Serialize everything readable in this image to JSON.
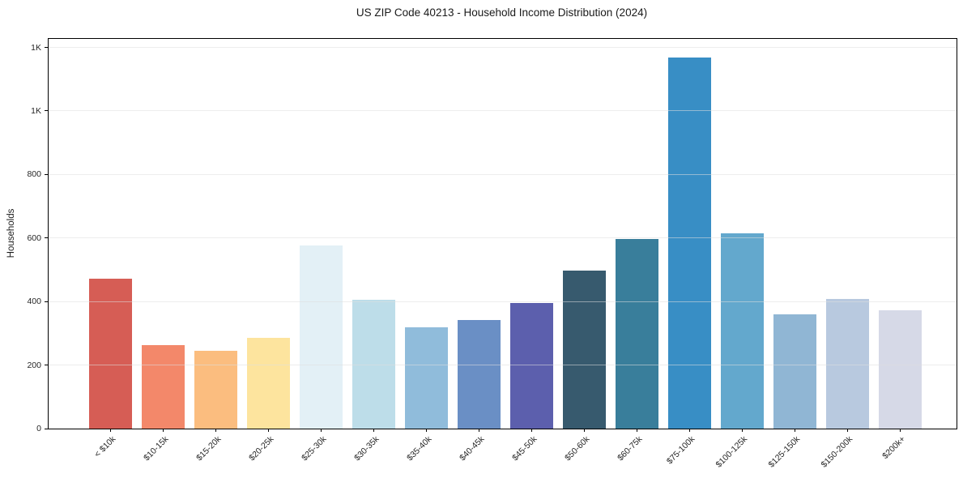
{
  "chart_data": {
    "type": "bar",
    "title": "US ZIP Code 40213 - Household Income Distribution (2024)",
    "xlabel": "",
    "ylabel": "Households",
    "ylim": [
      0,
      1227
    ],
    "grid": true,
    "grid_axis": "y",
    "legend": "none",
    "yticks": {
      "values": [
        0,
        200,
        400,
        600,
        800,
        1000,
        1200
      ],
      "labels": [
        "0",
        "200",
        "400",
        "600",
        "800",
        "1K",
        "1K"
      ]
    },
    "categories": [
      "< $10k",
      "$10-15k",
      "$15-20k",
      "$20-25k",
      "$25-30k",
      "$30-35k",
      "$35-40k",
      "$40-45k",
      "$45-50k",
      "$50-60k",
      "$60-75k",
      "$75-100k",
      "$100-125k",
      "$125-150k",
      "$150-200k",
      "$200k+"
    ],
    "values": [
      472,
      263,
      245,
      286,
      576,
      407,
      319,
      342,
      396,
      497,
      596,
      1168,
      616,
      360,
      408,
      373
    ],
    "bar_colors": [
      "#d65d55",
      "#f3886a",
      "#fbbd7f",
      "#fde49e",
      "#e3f0f6",
      "#bddde9",
      "#90bcdb",
      "#6a8fc5",
      "#5c5fad",
      "#375a6e",
      "#397e9b",
      "#388ec5",
      "#63a8cd",
      "#90b6d4",
      "#b8c9df",
      "#d6d9e7"
    ],
    "axis_color": "#000000",
    "gridline_color": "#ececec",
    "background_color": "#ffffff"
  }
}
